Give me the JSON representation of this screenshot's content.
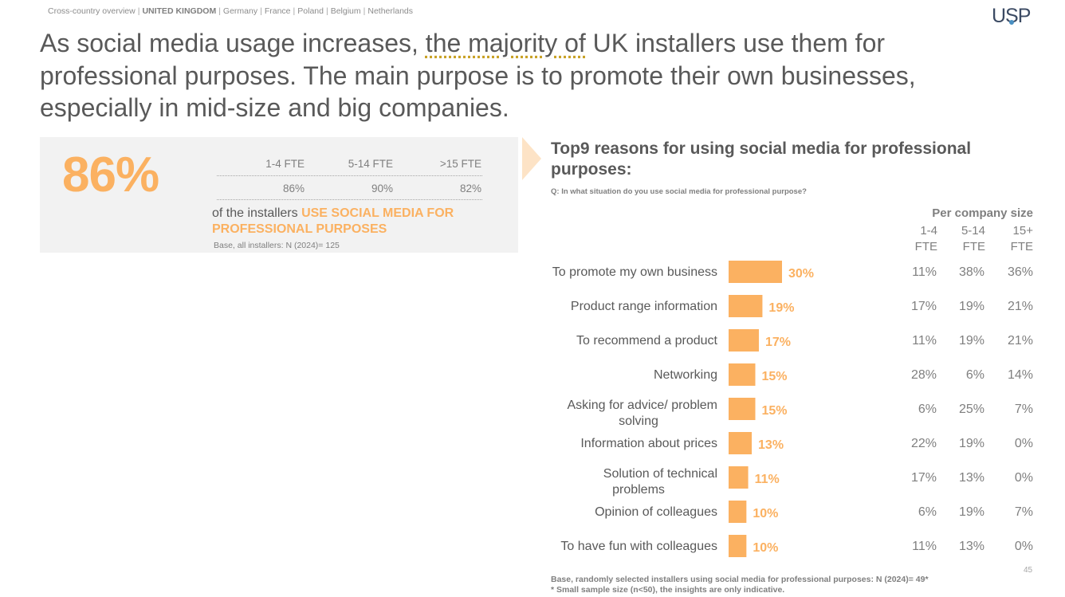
{
  "breadcrumb": {
    "items": [
      {
        "label": "Cross-country overview",
        "active": false
      },
      {
        "label": "UNITED KINGDOM",
        "active": true
      },
      {
        "label": "Germany",
        "active": false
      },
      {
        "label": "France",
        "active": false
      },
      {
        "label": "Poland",
        "active": false
      },
      {
        "label": "Belgium",
        "active": false
      },
      {
        "label": "Netherlands",
        "active": false
      }
    ],
    "separator": "|"
  },
  "logo": {
    "text": "USP"
  },
  "headline": {
    "part1": "As social media usage increases, ",
    "highlight": "the majority of",
    "part2": " UK installers use them for professional purposes. The main purpose is to promote their own businesses, especially in mid-size and big companies."
  },
  "summary": {
    "big_value": "86%",
    "columns": [
      "1-4 FTE",
      "5-14 FTE",
      ">15 FTE"
    ],
    "values": [
      "86%",
      "90%",
      "82%"
    ],
    "caption_plain": "of the installers ",
    "caption_emphasis": "USE SOCIAL MEDIA FOR PROFESSIONAL PURPOSES",
    "base": "Base, all installers: N (2024)= 125"
  },
  "chart_header": {
    "title": "Top9 reasons for using social media for professional purposes:",
    "question": "Q: In what situation do you use social media for professional purpose?",
    "per_size_label": "Per company size",
    "size_columns": [
      [
        "1-4",
        "FTE"
      ],
      [
        "5-14",
        "FTE"
      ],
      [
        "15+",
        "FTE"
      ]
    ]
  },
  "chart_data": {
    "type": "bar",
    "orientation": "horizontal",
    "categories": [
      "To promote my own business",
      "Product range information",
      "To recommend a product",
      "Networking",
      "Asking for advice/ problem solving",
      "Information about prices",
      "Solution of technical problems",
      "Opinion of colleagues",
      "To have fun with colleagues"
    ],
    "values": [
      30,
      19,
      17,
      15,
      15,
      13,
      11,
      10,
      10
    ],
    "value_labels": [
      "30%",
      "19%",
      "17%",
      "15%",
      "15%",
      "13%",
      "11%",
      "10%",
      "10%"
    ],
    "unit": "%",
    "color": "#fbb161",
    "table": {
      "columns": [
        "1-4 FTE",
        "5-14 FTE",
        "15+ FTE"
      ],
      "rows": [
        [
          "11%",
          "38%",
          "36%"
        ],
        [
          "17%",
          "19%",
          "21%"
        ],
        [
          "11%",
          "19%",
          "21%"
        ],
        [
          "28%",
          "6%",
          "14%"
        ],
        [
          "6%",
          "25%",
          "7%"
        ],
        [
          "22%",
          "19%",
          "0%"
        ],
        [
          "17%",
          "13%",
          "0%"
        ],
        [
          "6%",
          "19%",
          "7%"
        ],
        [
          "11%",
          "13%",
          "0%"
        ]
      ]
    }
  },
  "footer": {
    "base": "Base, randomly selected installers using social media for professional purposes: N (2024)= 49*",
    "note": "* Small sample size (n<50), the insights are only indicative.",
    "page_number": "45"
  },
  "colors": {
    "accent": "#fbb161",
    "accent_light": "#fde3c6",
    "text": "#595959",
    "muted": "#7f7f7f",
    "panel": "#f2f2f2"
  }
}
